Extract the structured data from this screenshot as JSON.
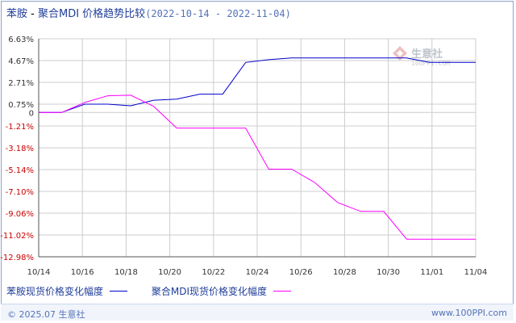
{
  "header": {
    "name_a": "苯胺",
    "separator": " - ",
    "name_b": "聚合MDI",
    "suffix": " 价格趋势比较",
    "range": "(2022-10-14 - 2022-11-04)"
  },
  "watermark": {
    "text": "生意社",
    "url": "100PPI.COM"
  },
  "footer": {
    "left": "© 2025.07 生意社",
    "right": "www.100PPI.com"
  },
  "colors": {
    "series_a": "#0000cc",
    "series_b": "#ff00ff",
    "grid": "#cccccc",
    "axis": "#555555",
    "negative_tick": "#cc0000",
    "tick": "#333333"
  },
  "chart_data": {
    "type": "line",
    "x_ticks": [
      "10/14",
      "10/16",
      "10/18",
      "10/20",
      "10/22",
      "10/24",
      "10/26",
      "10/28",
      "10/30",
      "11/01",
      "11/04"
    ],
    "y_ticks": [
      "6.63%",
      "4.67%",
      "2.71%",
      "0.75%",
      "0",
      "-1.21%",
      "-3.18%",
      "-5.14%",
      "-7.10%",
      "-9.06%",
      "-11.02%",
      "-12.98%"
    ],
    "ylim": [
      -12.98,
      6.63
    ],
    "legend_position": "bottom",
    "series": [
      {
        "name": "苯胺现货价格变化幅度",
        "values": [
          0,
          0,
          0.75,
          0.75,
          0.6,
          1.1,
          1.2,
          1.65,
          1.65,
          4.5,
          4.75,
          4.9,
          4.9,
          4.9,
          4.9,
          4.9,
          4.9,
          4.5,
          4.5,
          4.5
        ]
      },
      {
        "name": "聚合MDI现货价格变化幅度",
        "values": [
          0,
          0,
          0.9,
          1.5,
          1.55,
          0.55,
          -1.4,
          -1.4,
          -1.4,
          -1.4,
          -5.1,
          -5.1,
          -6.3,
          -8.1,
          -8.9,
          -8.9,
          -11.4,
          -11.4,
          -11.4,
          -11.4
        ]
      }
    ]
  }
}
